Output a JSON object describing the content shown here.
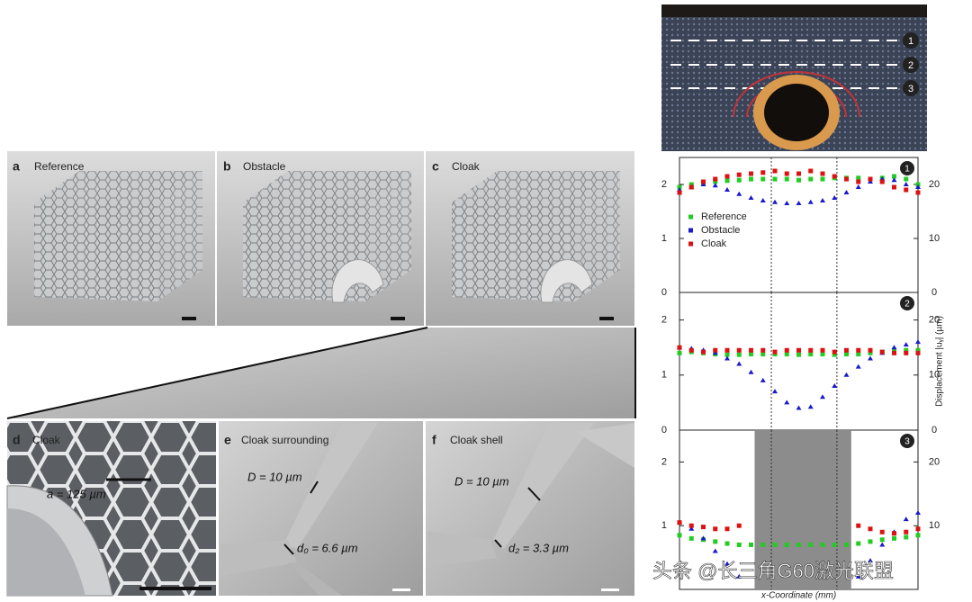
{
  "figure": {
    "panels": [
      {
        "letter": "a",
        "label": "Reference"
      },
      {
        "letter": "b",
        "label": "Obstacle"
      },
      {
        "letter": "c",
        "label": "Cloak"
      },
      {
        "letter": "d",
        "label": "Cloak"
      },
      {
        "letter": "e",
        "label": "Cloak surrounding"
      },
      {
        "letter": "f",
        "label": "Cloak shell"
      }
    ],
    "annotations": [
      "a = 125 µm",
      "D = 10 µm",
      "d₀ = 6.6 µm",
      "D = 10 µm",
      "d₂ = 3.3 µm"
    ],
    "photo_lines": [
      "1",
      "2",
      "3"
    ],
    "watermark": "头条 @长三角G60激光联盟"
  },
  "chart_data": [
    {
      "type": "line",
      "panel_label": "1",
      "xlim": [
        0,
        20
      ],
      "x": [
        0,
        1,
        2,
        3,
        4,
        5,
        6,
        7,
        8,
        9,
        10,
        11,
        12,
        13,
        14,
        15,
        16,
        17,
        18,
        19,
        20
      ],
      "ylim": [
        0,
        2.5
      ],
      "yticks": [
        0,
        1,
        2
      ],
      "y2lim": [
        0,
        25
      ],
      "y2ticks": [
        0,
        10,
        20
      ],
      "vlines": [
        7.7,
        13.2
      ],
      "legend": "left",
      "series": [
        {
          "name": "Reference",
          "color": "#22cc22",
          "marker": "square",
          "values": [
            1.95,
            2.0,
            2.02,
            2.05,
            2.07,
            2.08,
            2.1,
            2.1,
            2.1,
            2.1,
            2.08,
            2.1,
            2.1,
            2.12,
            2.12,
            2.12,
            2.1,
            2.12,
            2.15,
            2.1,
            2.0
          ]
        },
        {
          "name": "Obstacle",
          "color": "#1a1acc",
          "marker": "triangle",
          "values": [
            1.9,
            1.95,
            2.0,
            1.98,
            1.9,
            1.82,
            1.75,
            1.7,
            1.67,
            1.65,
            1.65,
            1.67,
            1.7,
            1.75,
            1.85,
            1.95,
            2.05,
            2.1,
            2.08,
            2.0,
            1.95
          ]
        },
        {
          "name": "Cloak",
          "color": "#dd1111",
          "marker": "square",
          "values": [
            1.85,
            1.95,
            2.05,
            2.1,
            2.15,
            2.18,
            2.2,
            2.22,
            2.25,
            2.2,
            2.2,
            2.25,
            2.2,
            2.15,
            2.1,
            2.05,
            2.1,
            2.05,
            1.95,
            1.9,
            1.85
          ]
        }
      ]
    },
    {
      "type": "line",
      "panel_label": "2",
      "xlim": [
        0,
        20
      ],
      "x": [
        0,
        1,
        2,
        3,
        4,
        5,
        6,
        7,
        8,
        9,
        10,
        11,
        12,
        13,
        14,
        15,
        16,
        17,
        18,
        19,
        20
      ],
      "ylim": [
        0,
        2.5
      ],
      "yticks": [
        0,
        1,
        2
      ],
      "y2lim": [
        0,
        25
      ],
      "y2ticks": [
        0,
        10,
        20
      ],
      "vlines": [
        7.7,
        13.2
      ],
      "y2label": "Displacement |uᵧ| (µm)",
      "series": [
        {
          "color": "#22cc22",
          "marker": "square",
          "values": [
            1.4,
            1.42,
            1.4,
            1.38,
            1.37,
            1.37,
            1.38,
            1.38,
            1.38,
            1.38,
            1.37,
            1.38,
            1.38,
            1.37,
            1.38,
            1.38,
            1.4,
            1.42,
            1.45,
            1.45,
            1.45
          ]
        },
        {
          "color": "#1a1acc",
          "marker": "triangle",
          "values": [
            1.5,
            1.48,
            1.45,
            1.4,
            1.3,
            1.2,
            1.05,
            0.9,
            0.7,
            0.5,
            0.4,
            0.42,
            0.6,
            0.8,
            1.0,
            1.15,
            1.3,
            1.4,
            1.5,
            1.55,
            1.6
          ]
        },
        {
          "color": "#dd1111",
          "marker": "square",
          "values": [
            1.5,
            1.45,
            1.42,
            1.45,
            1.45,
            1.45,
            1.45,
            1.45,
            1.42,
            1.45,
            1.45,
            1.45,
            1.45,
            1.42,
            1.45,
            1.45,
            1.45,
            1.42,
            1.4,
            1.4,
            1.4
          ]
        }
      ]
    },
    {
      "type": "line",
      "panel_label": "3",
      "xlim": [
        0,
        20
      ],
      "x": [
        0,
        1,
        2,
        3,
        4,
        5,
        6,
        7,
        8,
        9,
        10,
        11,
        12,
        13,
        14,
        15,
        16,
        17,
        18,
        19,
        20
      ],
      "ylim": [
        0,
        2.5
      ],
      "yticks": [
        1,
        2
      ],
      "y2lim": [
        0,
        25
      ],
      "y2ticks": [
        10,
        20
      ],
      "vlines": [
        7.7,
        13.2
      ],
      "shaded": [
        6.3,
        14.4
      ],
      "xlabel": "x-Coordinate (mm)",
      "series": [
        {
          "color": "#22cc22",
          "marker": "square",
          "values": [
            0.85,
            0.8,
            0.78,
            0.75,
            0.72,
            0.7,
            0.7,
            0.7,
            0.7,
            0.7,
            0.7,
            0.7,
            0.7,
            0.7,
            0.7,
            0.72,
            0.75,
            0.78,
            0.8,
            0.82,
            0.85
          ]
        },
        {
          "color": "#1a1acc",
          "marker": "triangle",
          "values": [
            1.05,
            0.95,
            0.8,
            0.6,
            0.4,
            0.2,
            null,
            null,
            null,
            null,
            null,
            null,
            null,
            null,
            null,
            0.2,
            0.45,
            0.7,
            0.9,
            1.1,
            1.2
          ]
        },
        {
          "color": "#dd1111",
          "marker": "square",
          "values": [
            1.05,
            1.0,
            0.98,
            0.95,
            0.95,
            1.0,
            null,
            null,
            null,
            null,
            null,
            null,
            null,
            null,
            null,
            1.0,
            0.95,
            0.9,
            0.88,
            0.9,
            0.95
          ]
        }
      ]
    }
  ]
}
